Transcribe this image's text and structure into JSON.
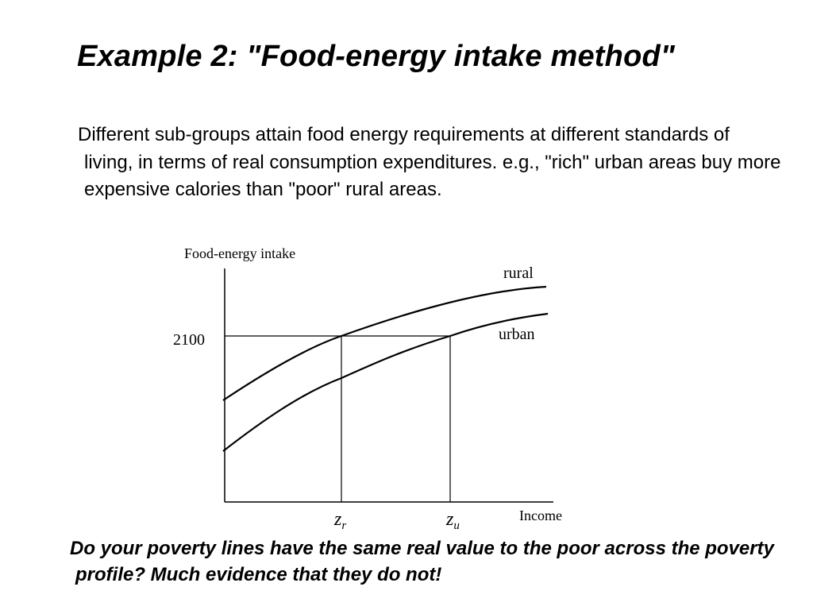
{
  "slide": {
    "title": "Example 2: \"Food-energy intake method\"",
    "body": "Different sub-groups attain food energy requirements at different standards of living, in terms of real consumption expenditures.  e.g., \"rich\" urban areas buy more expensive calories than \"poor\" rural areas.",
    "footer": "Do your poverty lines have the same real value to the poor across the poverty profile? Much evidence that they do not!"
  },
  "diagram": {
    "y_axis_label": "Food-energy intake",
    "x_axis_label": "Income",
    "threshold_label": "2100",
    "curve_rural_label": "rural",
    "curve_urban_label": "urban",
    "z_r": {
      "base": "z",
      "sub": "r"
    },
    "z_u": {
      "base": "z",
      "sub": "u"
    }
  }
}
